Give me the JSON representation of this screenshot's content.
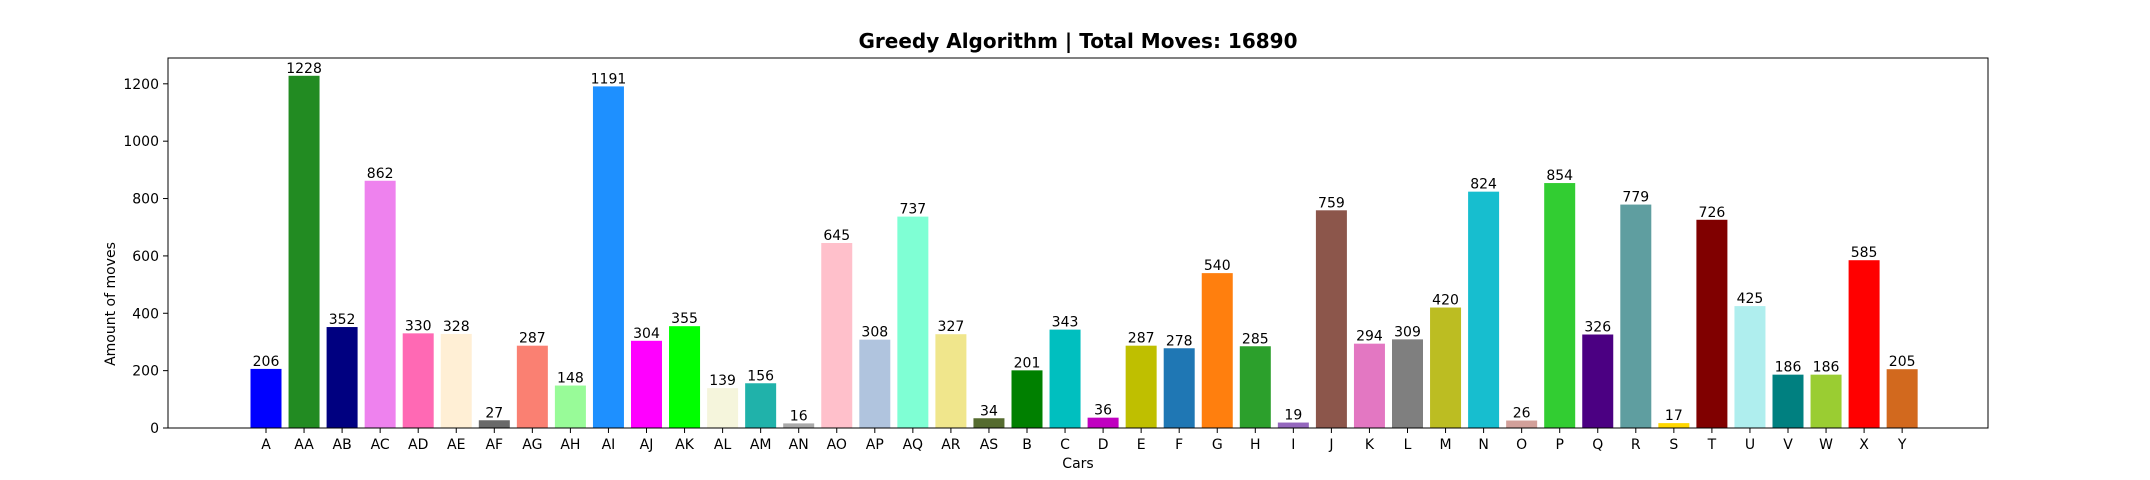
{
  "chart_data": {
    "type": "bar",
    "title": "Greedy Algorithm | Total Moves: 16890",
    "xlabel": "Cars",
    "ylabel": "Amount of moves",
    "ylim": [
      0,
      1290
    ],
    "yticks": [
      0,
      200,
      400,
      600,
      800,
      1000,
      1200
    ],
    "grid": false,
    "categories": [
      "A",
      "AA",
      "AB",
      "AC",
      "AD",
      "AE",
      "AF",
      "AG",
      "AH",
      "AI",
      "AJ",
      "AK",
      "AL",
      "AM",
      "AN",
      "AO",
      "AP",
      "AQ",
      "AR",
      "AS",
      "B",
      "C",
      "D",
      "E",
      "F",
      "G",
      "H",
      "I",
      "J",
      "K",
      "L",
      "M",
      "N",
      "O",
      "P",
      "Q",
      "R",
      "S",
      "T",
      "U",
      "V",
      "W",
      "X",
      "Y"
    ],
    "values": [
      206,
      1228,
      352,
      862,
      330,
      328,
      27,
      287,
      148,
      1191,
      304,
      355,
      139,
      156,
      16,
      645,
      308,
      737,
      327,
      34,
      201,
      343,
      36,
      287,
      278,
      540,
      285,
      19,
      759,
      294,
      309,
      420,
      824,
      26,
      854,
      326,
      779,
      17,
      726,
      425,
      186,
      186,
      585,
      205
    ],
    "colors": [
      "#0000ff",
      "#228b22",
      "#000080",
      "#ee82ee",
      "#ff69b4",
      "#ffefd5",
      "#696969",
      "#fa8072",
      "#98fb98",
      "#1e90ff",
      "#ff00ff",
      "#00ff00",
      "#f5f5dc",
      "#20b2aa",
      "#a9a9a9",
      "#ffc0cb",
      "#b0c4de",
      "#7fffd4",
      "#f0e68c",
      "#556b2f",
      "#008000",
      "#00bfbf",
      "#c000c0",
      "#bfbf00",
      "#1f77b4",
      "#ff7f0e",
      "#2ca02c",
      "#9467bd",
      "#8c564b",
      "#e377c2",
      "#7f7f7f",
      "#bcbd22",
      "#17becf",
      "#d2a09a",
      "#32cd32",
      "#4b0082",
      "#5f9ea0",
      "#ffd700",
      "#800000",
      "#afeeee",
      "#008080",
      "#9acd32",
      "#ff0000",
      "#d2691e"
    ]
  }
}
